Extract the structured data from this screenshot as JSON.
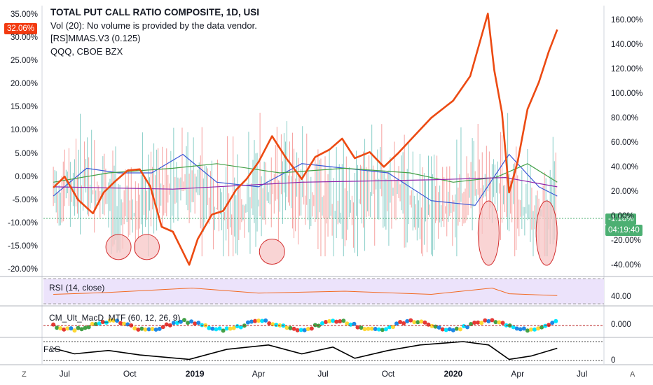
{
  "legend": {
    "title": "TOTAL PUT CALL RATIO COMPOSITE, 1D, USI",
    "line2": "Vol (20): No volume is provided by the data vendor.",
    "line3": "[RS]MMAS.V3 (0.125)",
    "line4": "QQQ, CBOE BZX"
  },
  "axes": {
    "left_ticks": [
      "35.00%",
      "30.00%",
      "25.00%",
      "20.00%",
      "15.00%",
      "10.00%",
      "5.00%",
      "0.00%",
      "-5.00%",
      "-10.00%",
      "-15.00%",
      "-20.00%"
    ],
    "right_ticks": [
      "160.00%",
      "140.00%",
      "120.00%",
      "100.00%",
      "80.00%",
      "60.00%",
      "40.00%",
      "20.00%",
      "0.00%",
      "-20.00%",
      "-40.00%"
    ],
    "x_ticks": [
      "Jul",
      "Oct",
      "2019",
      "Apr",
      "Jul",
      "Oct",
      "2020",
      "Apr",
      "Jul"
    ],
    "x_bold": [
      "2019",
      "2020"
    ]
  },
  "badges": {
    "left_value": "32.06%",
    "right_value": "-1.18%",
    "countdown": "04:19:40"
  },
  "panes": {
    "rsi": {
      "label": "RSI (14, close)",
      "tick": "40.00"
    },
    "macd": {
      "label": "CM_Ult_MacD_MTF (60, 12, 26, 9)",
      "tick": "0.000"
    },
    "fg": {
      "label": "F&G",
      "tick": "0"
    }
  },
  "corner": {
    "left": "Z",
    "right": "A"
  },
  "colors": {
    "qqq_line": "#ec4a12",
    "up_bar": "#26a69a",
    "down_bar": "#ef5350",
    "blue_ma": "#3b57d6",
    "green_ma": "#43a047",
    "purple_ma": "#8e24aa",
    "circle_fill": "#f7c6c6",
    "circle_stroke": "#d32f2f",
    "rsi_line": "#f26a23",
    "rsi_band": "#ece3fb",
    "fg_line": "#000000",
    "badge_orange": "#f23a10",
    "badge_green": "#4caf72"
  },
  "chart_data": {
    "type": "line",
    "title": "TOTAL PUT CALL RATIO COMPOSITE, 1D, USI",
    "x_range": [
      "2018-06",
      "2020-07"
    ],
    "left_axis_range": [
      -20,
      35
    ],
    "right_axis_range": [
      -40,
      160
    ],
    "series": [
      {
        "name": "QQQ, CBOE BZX",
        "axis": "right",
        "values": [
          {
            "x": "2018-06-15",
            "y": 24
          },
          {
            "x": "2018-07-01",
            "y": 33
          },
          {
            "x": "2018-07-20",
            "y": 14
          },
          {
            "x": "2018-08-10",
            "y": 3
          },
          {
            "x": "2018-08-25",
            "y": 20
          },
          {
            "x": "2018-09-10",
            "y": 29
          },
          {
            "x": "2018-09-28",
            "y": 38
          },
          {
            "x": "2018-10-15",
            "y": 39
          },
          {
            "x": "2018-10-30",
            "y": 25
          },
          {
            "x": "2018-11-15",
            "y": -8
          },
          {
            "x": "2018-12-01",
            "y": -12
          },
          {
            "x": "2018-12-24",
            "y": -39
          },
          {
            "x": "2019-01-05",
            "y": -18
          },
          {
            "x": "2019-01-25",
            "y": 2
          },
          {
            "x": "2019-02-10",
            "y": 5
          },
          {
            "x": "2019-02-28",
            "y": 22
          },
          {
            "x": "2019-03-15",
            "y": 31
          },
          {
            "x": "2019-04-01",
            "y": 45
          },
          {
            "x": "2019-04-20",
            "y": 66
          },
          {
            "x": "2019-05-10",
            "y": 48
          },
          {
            "x": "2019-06-01",
            "y": 31
          },
          {
            "x": "2019-06-20",
            "y": 49
          },
          {
            "x": "2019-07-10",
            "y": 55
          },
          {
            "x": "2019-07-28",
            "y": 64
          },
          {
            "x": "2019-08-15",
            "y": 48
          },
          {
            "x": "2019-09-05",
            "y": 53
          },
          {
            "x": "2019-09-25",
            "y": 41
          },
          {
            "x": "2019-10-15",
            "y": 52
          },
          {
            "x": "2019-11-05",
            "y": 65
          },
          {
            "x": "2019-12-01",
            "y": 81
          },
          {
            "x": "2020-01-01",
            "y": 95
          },
          {
            "x": "2020-01-25",
            "y": 115
          },
          {
            "x": "2020-02-19",
            "y": 166
          },
          {
            "x": "2020-02-28",
            "y": 120
          },
          {
            "x": "2020-03-10",
            "y": 85
          },
          {
            "x": "2020-03-20",
            "y": 20
          },
          {
            "x": "2020-04-01",
            "y": 45
          },
          {
            "x": "2020-04-15",
            "y": 88
          },
          {
            "x": "2020-05-01",
            "y": 110
          },
          {
            "x": "2020-05-15",
            "y": 135
          },
          {
            "x": "2020-05-27",
            "y": 153
          }
        ]
      },
      {
        "name": "",
        "axis": "left",
        "values": [
          {
            "x": "2018-06-15",
            "y": -4
          },
          {
            "x": "2018-08-01",
            "y": 2
          },
          {
            "x": "2018-09-15",
            "y": 1
          },
          {
            "x": "2018-11-01",
            "y": 1
          },
          {
            "x": "2018-12-15",
            "y": 5
          },
          {
            "x": "2019-02-01",
            "y": -1
          },
          {
            "x": "2019-04-01",
            "y": -2
          },
          {
            "x": "2019-06-01",
            "y": 3
          },
          {
            "x": "2019-08-01",
            "y": 2
          },
          {
            "x": "2019-10-01",
            "y": 1
          },
          {
            "x": "2019-12-01",
            "y": -5
          },
          {
            "x": "2020-02-01",
            "y": -6
          },
          {
            "x": "2020-03-20",
            "y": 5
          },
          {
            "x": "2020-05-01",
            "y": -2
          },
          {
            "x": "2020-05-27",
            "y": -4
          }
        ]
      },
      {
        "name": "",
        "axis": "left",
        "values": [
          {
            "x": "2018-06-15",
            "y": -1
          },
          {
            "x": "2018-09-01",
            "y": 1
          },
          {
            "x": "2018-12-01",
            "y": 2
          },
          {
            "x": "2019-02-01",
            "y": 3
          },
          {
            "x": "2019-05-01",
            "y": 1
          },
          {
            "x": "2019-08-01",
            "y": 2
          },
          {
            "x": "2019-11-01",
            "y": 1
          },
          {
            "x": "2020-01-01",
            "y": -1
          },
          {
            "x": "2020-03-01",
            "y": 0
          },
          {
            "x": "2020-04-15",
            "y": 3
          },
          {
            "x": "2020-05-27",
            "y": -1
          }
        ]
      },
      {
        "name": "",
        "axis": "left",
        "values": [
          {
            "x": "2018-06-15",
            "y": -2
          },
          {
            "x": "2018-12-01",
            "y": -2.5
          },
          {
            "x": "2019-06-01",
            "y": -1
          },
          {
            "x": "2019-12-01",
            "y": -0.5
          },
          {
            "x": "2020-03-15",
            "y": 0
          },
          {
            "x": "2020-05-27",
            "y": -2
          }
        ]
      }
    ],
    "highlight_circles": [
      {
        "x": "2018-09-15",
        "y": -15
      },
      {
        "x": "2018-10-25",
        "y": -15
      },
      {
        "x": "2019-04-20",
        "y": -16
      },
      {
        "x": "2020-02-20",
        "y": -12
      },
      {
        "x": "2020-05-12",
        "y": -12
      }
    ],
    "rsi": {
      "values": [
        {
          "x": "2018-06-15",
          "y": 45
        },
        {
          "x": "2018-09-01",
          "y": 48
        },
        {
          "x": "2018-12-28",
          "y": 55
        },
        {
          "x": "2019-04-01",
          "y": 47
        },
        {
          "x": "2019-08-01",
          "y": 50
        },
        {
          "x": "2019-12-01",
          "y": 45
        },
        {
          "x": "2020-02-25",
          "y": 55
        },
        {
          "x": "2020-03-20",
          "y": 46
        },
        {
          "x": "2020-05-27",
          "y": 43
        }
      ]
    },
    "fg": {
      "values": [
        {
          "x": "2018-06-15",
          "y": 55
        },
        {
          "x": "2018-07-15",
          "y": 30
        },
        {
          "x": "2018-09-01",
          "y": 45
        },
        {
          "x": "2018-10-15",
          "y": 25
        },
        {
          "x": "2018-12-24",
          "y": 5
        },
        {
          "x": "2019-02-15",
          "y": 50
        },
        {
          "x": "2019-04-15",
          "y": 70
        },
        {
          "x": "2019-06-01",
          "y": 30
        },
        {
          "x": "2019-07-15",
          "y": 60
        },
        {
          "x": "2019-08-15",
          "y": 10
        },
        {
          "x": "2019-10-01",
          "y": 45
        },
        {
          "x": "2019-11-15",
          "y": 70
        },
        {
          "x": "2020-01-15",
          "y": 85
        },
        {
          "x": "2020-02-20",
          "y": 70
        },
        {
          "x": "2020-03-20",
          "y": 5
        },
        {
          "x": "2020-04-20",
          "y": 20
        },
        {
          "x": "2020-05-27",
          "y": 55
        }
      ]
    }
  }
}
